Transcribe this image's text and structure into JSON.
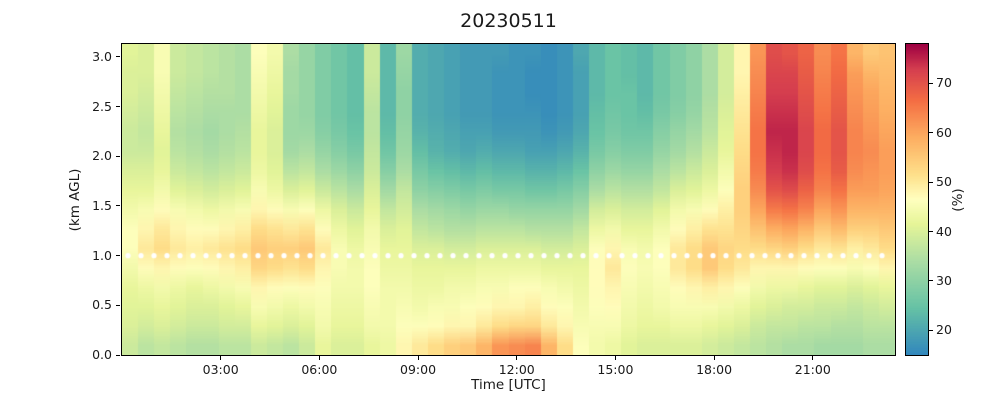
{
  "chart_data": {
    "type": "heatmap",
    "title": "20230511",
    "xlabel": "Time [UTC]",
    "ylabel": "(km AGL)",
    "colorbar_label": "(%)",
    "xlim": [
      0,
      23.5
    ],
    "ylim": [
      0,
      3.13
    ],
    "vmin": 15,
    "vmax": 78,
    "x_tick_labels": [
      "03:00",
      "06:00",
      "09:00",
      "12:00",
      "15:00",
      "18:00",
      "21:00"
    ],
    "x_tick_hours": [
      3,
      6,
      9,
      12,
      15,
      18,
      21
    ],
    "y_tick_labels": [
      "0.0",
      "0.5",
      "1.0",
      "1.5",
      "2.0",
      "2.5",
      "3.0"
    ],
    "y_tick_values": [
      0,
      0.5,
      1,
      1.5,
      2,
      2.5,
      3
    ],
    "colorbar_tick_labels": [
      "20",
      "30",
      "40",
      "50",
      "60",
      "70"
    ],
    "colorbar_tick_values": [
      20,
      30,
      40,
      50,
      60,
      70
    ],
    "x_hours": [
      0,
      0.5,
      1,
      1.5,
      2,
      2.5,
      3,
      3.5,
      4,
      4.5,
      5,
      5.5,
      6,
      6.5,
      7,
      7.5,
      8,
      8.5,
      9,
      9.5,
      10,
      10.5,
      11,
      11.5,
      12,
      12.5,
      13,
      13.5,
      14,
      14.5,
      15,
      15.5,
      16,
      16.5,
      17,
      17.5,
      18,
      18.5,
      19,
      19.5,
      20,
      20.5,
      21,
      21.5,
      22,
      22.5,
      23,
      23.5
    ],
    "heights_km": [
      0.1,
      0.29,
      0.49,
      0.68,
      0.88,
      1.08,
      1.27,
      1.47,
      1.66,
      1.86,
      2.05,
      2.25,
      2.45,
      2.64,
      2.84,
      3.03
    ],
    "values_percent": [
      [
        38,
        36,
        37,
        36,
        35,
        35,
        36,
        36,
        38,
        37,
        36,
        38,
        42,
        40,
        40,
        42,
        43,
        48,
        50,
        52,
        54,
        55,
        58,
        62,
        63,
        64,
        58,
        52,
        46,
        44,
        43,
        41,
        40,
        40,
        40,
        40,
        39,
        38,
        37,
        36,
        35,
        34,
        34,
        33,
        33,
        33,
        34,
        34
      ],
      [
        40,
        39,
        40,
        39,
        38,
        38,
        39,
        39,
        42,
        41,
        40,
        41,
        44,
        42,
        42,
        44,
        44,
        46,
        46,
        47,
        48,
        48,
        50,
        52,
        53,
        53,
        50,
        48,
        45,
        45,
        45,
        43,
        42,
        42,
        43,
        43,
        42,
        41,
        40,
        38,
        37,
        37,
        36,
        36,
        35,
        35,
        36,
        36
      ],
      [
        41,
        41,
        42,
        41,
        40,
        40,
        41,
        42,
        45,
        44,
        43,
        44,
        45,
        43,
        43,
        45,
        44,
        45,
        44,
        45,
        45,
        46,
        47,
        48,
        48,
        49,
        47,
        46,
        44,
        46,
        47,
        44,
        43,
        44,
        45,
        45,
        45,
        44,
        43,
        41,
        40,
        39,
        39,
        38,
        38,
        37,
        38,
        39
      ],
      [
        42,
        43,
        44,
        43,
        42,
        43,
        44,
        45,
        48,
        47,
        46,
        47,
        46,
        44,
        44,
        46,
        44,
        44,
        43,
        43,
        44,
        44,
        45,
        45,
        46,
        46,
        45,
        44,
        43,
        47,
        48,
        45,
        44,
        45,
        47,
        48,
        49,
        48,
        46,
        44,
        43,
        43,
        42,
        41,
        41,
        40,
        41,
        42
      ],
      [
        44,
        47,
        48,
        47,
        46,
        47,
        48,
        49,
        53,
        52,
        51,
        52,
        48,
        45,
        44,
        46,
        43,
        43,
        42,
        42,
        42,
        42,
        43,
        43,
        43,
        43,
        42,
        42,
        42,
        47,
        50,
        46,
        45,
        46,
        50,
        52,
        55,
        52,
        50,
        48,
        48,
        48,
        47,
        46,
        46,
        45,
        46,
        48
      ],
      [
        46,
        50,
        52,
        50,
        49,
        50,
        51,
        52,
        55,
        54,
        54,
        55,
        50,
        45,
        43,
        45,
        42,
        42,
        40,
        40,
        39,
        39,
        40,
        40,
        40,
        40,
        39,
        39,
        40,
        46,
        48,
        45,
        44,
        46,
        50,
        52,
        55,
        53,
        52,
        52,
        53,
        54,
        52,
        50,
        51,
        49,
        50,
        52
      ],
      [
        46,
        48,
        50,
        48,
        47,
        47,
        48,
        49,
        52,
        51,
        50,
        51,
        47,
        43,
        41,
        44,
        40,
        41,
        37,
        36,
        35,
        35,
        36,
        36,
        36,
        35,
        35,
        35,
        37,
        43,
        44,
        42,
        42,
        44,
        47,
        49,
        51,
        51,
        53,
        56,
        59,
        60,
        58,
        55,
        57,
        54,
        54,
        55
      ],
      [
        44,
        45,
        47,
        45,
        44,
        43,
        44,
        45,
        48,
        47,
        45,
        46,
        43,
        40,
        38,
        42,
        37,
        39,
        34,
        33,
        32,
        31,
        32,
        32,
        31,
        31,
        31,
        31,
        33,
        39,
        40,
        39,
        39,
        41,
        44,
        45,
        47,
        49,
        54,
        60,
        65,
        66,
        64,
        60,
        62,
        58,
        58,
        58
      ],
      [
        42,
        42,
        44,
        41,
        40,
        39,
        40,
        41,
        45,
        43,
        40,
        41,
        38,
        36,
        34,
        40,
        33,
        37,
        30,
        29,
        28,
        27,
        28,
        27,
        27,
        26,
        26,
        27,
        29,
        34,
        36,
        35,
        35,
        37,
        40,
        41,
        43,
        46,
        54,
        63,
        70,
        71,
        68,
        64,
        66,
        61,
        61,
        60
      ],
      [
        40,
        40,
        42,
        38,
        37,
        36,
        37,
        38,
        43,
        41,
        36,
        37,
        34,
        32,
        30,
        38,
        29,
        34,
        27,
        25,
        24,
        23,
        24,
        23,
        23,
        22,
        22,
        23,
        25,
        30,
        32,
        31,
        31,
        34,
        36,
        38,
        40,
        44,
        53,
        65,
        73,
        74,
        71,
        66,
        69,
        63,
        62,
        61
      ],
      [
        38,
        38,
        41,
        36,
        35,
        34,
        35,
        36,
        42,
        40,
        33,
        34,
        31,
        29,
        27,
        37,
        26,
        32,
        24,
        22,
        21,
        20,
        21,
        20,
        20,
        19,
        19,
        20,
        22,
        27,
        29,
        28,
        28,
        31,
        33,
        35,
        38,
        42,
        52,
        66,
        74,
        75,
        72,
        67,
        70,
        64,
        63,
        61
      ],
      [
        38,
        37,
        42,
        35,
        34,
        33,
        34,
        35,
        42,
        40,
        32,
        32,
        29,
        27,
        25,
        36,
        24,
        31,
        22,
        21,
        20,
        19,
        19,
        18,
        18,
        18,
        17,
        18,
        20,
        25,
        27,
        26,
        26,
        29,
        31,
        33,
        36,
        41,
        51,
        66,
        75,
        75,
        72,
        67,
        70,
        64,
        62,
        60
      ],
      [
        39,
        38,
        43,
        36,
        35,
        34,
        34,
        34,
        43,
        41,
        32,
        31,
        28,
        26,
        24,
        36,
        23,
        30,
        21,
        20,
        19,
        18,
        18,
        17,
        17,
        17,
        16,
        17,
        19,
        24,
        26,
        25,
        24,
        27,
        29,
        31,
        35,
        40,
        50,
        65,
        74,
        74,
        71,
        66,
        69,
        63,
        61,
        59
      ],
      [
        40,
        39,
        44,
        37,
        36,
        35,
        35,
        34,
        44,
        42,
        33,
        31,
        28,
        26,
        24,
        37,
        23,
        30,
        21,
        20,
        19,
        18,
        18,
        17,
        17,
        16,
        16,
        17,
        19,
        23,
        25,
        25,
        23,
        26,
        28,
        30,
        34,
        39,
        49,
        64,
        73,
        73,
        70,
        65,
        68,
        62,
        60,
        58
      ],
      [
        40,
        40,
        45,
        38,
        37,
        36,
        35,
        34,
        45,
        43,
        33,
        31,
        28,
        26,
        24,
        38,
        23,
        31,
        21,
        20,
        19,
        18,
        18,
        17,
        17,
        16,
        16,
        17,
        19,
        23,
        25,
        24,
        23,
        26,
        28,
        30,
        34,
        39,
        48,
        63,
        72,
        72,
        69,
        64,
        67,
        61,
        58,
        57
      ],
      [
        41,
        40,
        45,
        38,
        37,
        36,
        35,
        34,
        46,
        44,
        34,
        31,
        28,
        26,
        24,
        38,
        23,
        32,
        21,
        20,
        19,
        18,
        18,
        18,
        17,
        17,
        16,
        17,
        20,
        23,
        25,
        24,
        23,
        26,
        28,
        30,
        34,
        39,
        48,
        62,
        71,
        70,
        68,
        63,
        66,
        58,
        55,
        56
      ]
    ],
    "overlay": {
      "type": "dotted-line",
      "y_km": 1.0,
      "color": "#ffffff"
    },
    "colormap": {
      "name": "spectral_r-like",
      "stops": [
        [
          0.0,
          "#3288bd"
        ],
        [
          0.15,
          "#66c2a5"
        ],
        [
          0.3,
          "#abdda4"
        ],
        [
          0.42,
          "#e6f598"
        ],
        [
          0.5,
          "#ffffbf"
        ],
        [
          0.58,
          "#fee08b"
        ],
        [
          0.7,
          "#fdae61"
        ],
        [
          0.82,
          "#f46d43"
        ],
        [
          0.92,
          "#d53e4f"
        ],
        [
          1.0,
          "#9e0142"
        ]
      ]
    },
    "grid": false,
    "legend": "colorbar-right"
  }
}
